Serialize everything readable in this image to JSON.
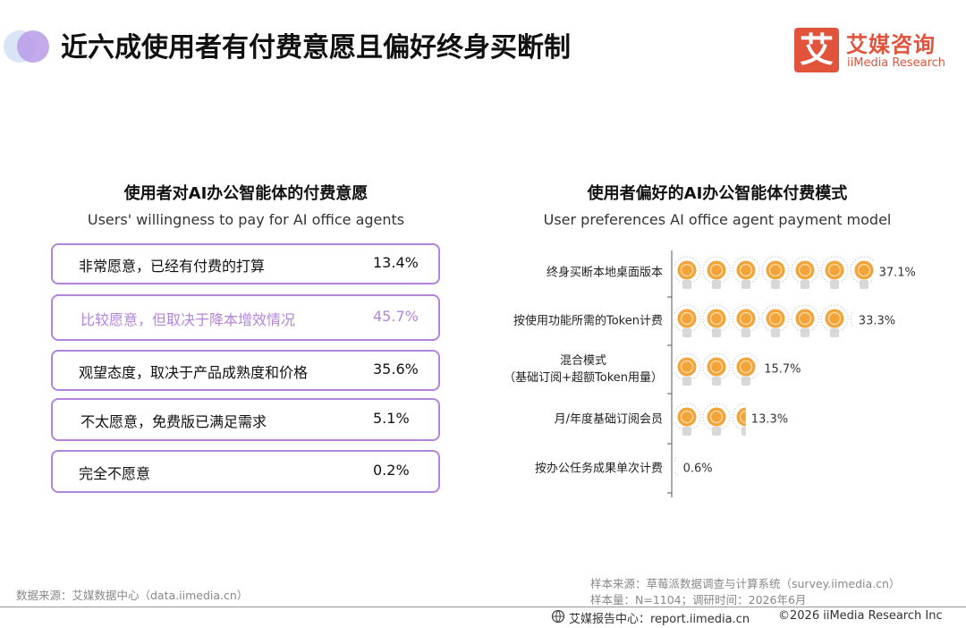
{
  "header": {
    "title": "近六成使用者有付费意愿且偏好终身买断制",
    "logo_icon": "艾",
    "logo_cn": "艾媒咨询",
    "logo_en": "iiMedia Research"
  },
  "chart_data": [
    {
      "type": "list",
      "title": "使用者对AI办公智能体的付费意愿",
      "subtitle": "Users' willingness to pay for AI office agents",
      "categories": [
        "非常愿意，已经有付费的打算",
        "比较愿意，但取决于降本增效情况",
        "观望态度，取决于产品成熟度和价格",
        "不太愿意，免费版已满足需求",
        "完全不愿意"
      ],
      "values": [
        13.4,
        45.7,
        35.6,
        5.1,
        0.2
      ],
      "value_labels": [
        "13.4%",
        "45.7%",
        "35.6%",
        "5.1%",
        "0.2%"
      ],
      "color": "#b384de",
      "highlight_index": 1
    },
    {
      "type": "pictograph",
      "title": "使用者偏好的AI办公智能体付费模式",
      "subtitle": "User preferences AI office agent payment model",
      "categories": [
        "终身买断本地桌面版本",
        "按使用功能所需的Token计费",
        "混合模式\n（基础订阅+超额Token用量）",
        "月/年度基础订阅会员",
        "按办公任务成果单次计费"
      ],
      "values": [
        37.1,
        33.3,
        15.7,
        13.3,
        0.6
      ],
      "value_labels": [
        "37.1%",
        "33.3%",
        "15.7%",
        "13.3%",
        "0.6%"
      ],
      "color": "#f2a33a"
    }
  ],
  "footer": {
    "data_source": "数据来源：艾媒数据中心（data.iimedia.cn）",
    "sample_source": "样本来源：草莓派数据调查与计算系统（survey.iimedia.cn）",
    "sample_size": "样本量：N=1104；调研时间：2026年6月",
    "report_center": "艾媒报告中心：report.iimedia.cn",
    "copyright": "©2026  iiMedia Research  Inc"
  }
}
